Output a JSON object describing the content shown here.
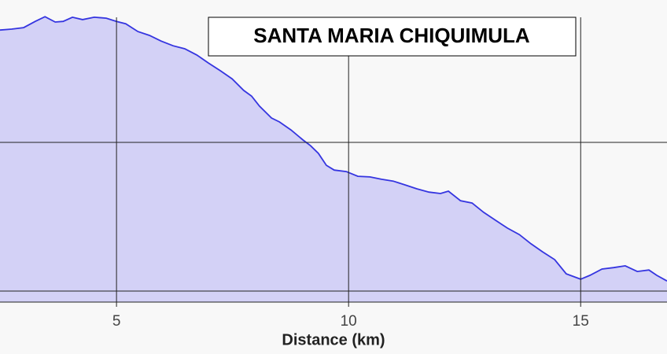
{
  "chart_data": {
    "type": "area",
    "title": "SANTA MARIA CHIQUIMULA",
    "x_label": "Distance (km)",
    "x": [
      2.49,
      2.74,
      3.0,
      3.25,
      3.46,
      3.68,
      3.85,
      4.05,
      4.27,
      4.52,
      4.78,
      5.0,
      5.2,
      5.46,
      5.71,
      5.96,
      6.22,
      6.47,
      6.73,
      6.98,
      7.24,
      7.49,
      7.74,
      7.91,
      8.08,
      8.34,
      8.51,
      8.76,
      9.02,
      9.18,
      9.35,
      9.52,
      9.69,
      9.95,
      10.2,
      10.46,
      10.71,
      10.96,
      11.22,
      11.47,
      11.73,
      11.98,
      12.15,
      12.41,
      12.66,
      12.91,
      13.17,
      13.42,
      13.68,
      13.93,
      14.18,
      14.44,
      14.69,
      15.0,
      15.2,
      15.46,
      15.71,
      15.96,
      16.22,
      16.47,
      16.64,
      16.86
    ],
    "values": [
      2878,
      2881,
      2886,
      2907,
      2923,
      2905,
      2907,
      2921,
      2913,
      2921,
      2918,
      2907,
      2899,
      2873,
      2860,
      2841,
      2825,
      2815,
      2794,
      2767,
      2741,
      2714,
      2675,
      2656,
      2622,
      2582,
      2569,
      2542,
      2508,
      2489,
      2463,
      2423,
      2407,
      2402,
      2386,
      2384,
      2376,
      2370,
      2357,
      2344,
      2333,
      2328,
      2336,
      2304,
      2296,
      2265,
      2238,
      2212,
      2190,
      2159,
      2132,
      2106,
      2058,
      2040,
      2053,
      2074,
      2079,
      2085,
      2066,
      2071,
      2053,
      2034
    ],
    "color": "#3535e0",
    "fill": "#d3d1f6",
    "xlim": [
      2.49,
      16.86
    ],
    "xticks": [
      5,
      10,
      15
    ],
    "ylim": [
      1963,
      2979
    ],
    "yticks": [
      2000,
      2500
    ],
    "grid": true
  }
}
